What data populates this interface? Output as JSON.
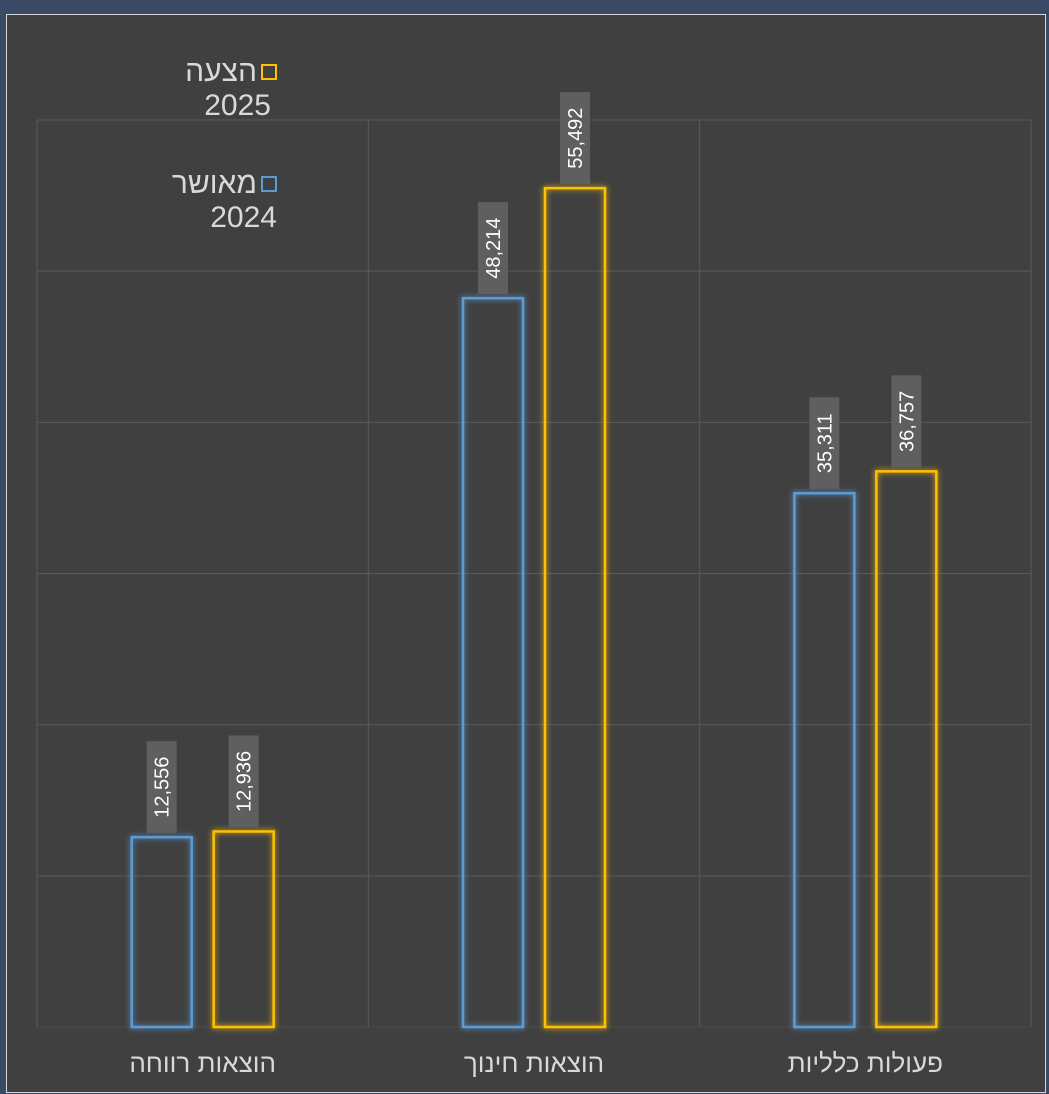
{
  "chart_data": {
    "type": "bar",
    "categories": [
      "פעולות כלליות",
      "הוצאות חינוך",
      "הוצאות רווחה"
    ],
    "series": [
      {
        "name": "מאושר 2024",
        "color": "#5b9bd5",
        "values": [
          35311,
          48214,
          12556
        ]
      },
      {
        "name": "הצעה 2025",
        "color": "#ffc000",
        "values": [
          36757,
          55492,
          12936
        ]
      }
    ],
    "value_labels": {
      "series_0": [
        "35,311",
        "48,214",
        "12,556"
      ],
      "series_1": [
        "36,757",
        "55,492",
        "12,936"
      ]
    },
    "ylim": [
      0,
      60000
    ],
    "grid": true,
    "category_order": "right-to-left",
    "legend": {
      "placement": "top-left",
      "items": [
        {
          "label_line1": "הצעה",
          "label_line2": "2025",
          "color": "#ffc000"
        },
        {
          "label_line1": "מאושר",
          "label_line2": "2024",
          "color": "#5b9bd5"
        }
      ]
    }
  }
}
